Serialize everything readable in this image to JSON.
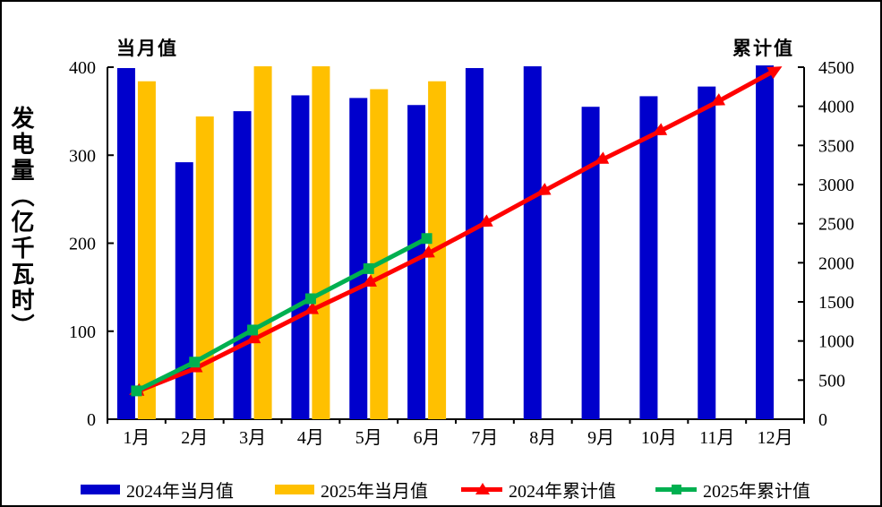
{
  "window": {
    "background_color": "#FFFFFF",
    "border_color": "#000000",
    "text_color": "#000000"
  },
  "chart_data": {
    "type": "combo-bar-line",
    "title": "",
    "categories": [
      "1月",
      "2月",
      "3月",
      "4月",
      "5月",
      "6月",
      "7月",
      "8月",
      "9月",
      "10月",
      "11月",
      "12月"
    ],
    "left_axis": {
      "header": "当月值",
      "title_vertical": "发电量（亿千瓦时）",
      "min": 0,
      "max": 400,
      "step": 100,
      "tick_labels": [
        "0",
        "100",
        "200",
        "300",
        "400"
      ]
    },
    "right_axis": {
      "header": "累计值",
      "min": 0,
      "max": 4500,
      "step": 500,
      "tick_labels": [
        "0",
        "500",
        "1000",
        "1500",
        "2000",
        "2500",
        "3000",
        "3500",
        "4000",
        "4500"
      ]
    },
    "grid": "off",
    "legend_position": "bottom",
    "series": [
      {
        "name": "2024年当月值",
        "type": "bar",
        "axis": "left",
        "color": "#0000CC",
        "values": [
          399,
          292,
          350,
          368,
          365,
          357,
          399,
          401,
          355,
          367,
          378,
          402
        ]
      },
      {
        "name": "2025年当月值",
        "type": "bar",
        "axis": "left",
        "color": "#FFC000",
        "values": [
          384,
          344,
          401,
          401,
          375,
          384
        ]
      },
      {
        "name": "2024年累计值",
        "type": "line",
        "marker": "triangle",
        "axis": "right",
        "color": "#FF0000",
        "values": [
          352,
          645,
          1015,
          1390,
          1740,
          2110,
          2505,
          2910,
          3310,
          3675,
          4055,
          4460
        ]
      },
      {
        "name": "2025年累计值",
        "type": "line",
        "marker": "square",
        "axis": "right",
        "color": "#00B050",
        "values": [
          362,
          730,
          1140,
          1540,
          1925,
          2310
        ]
      }
    ]
  }
}
